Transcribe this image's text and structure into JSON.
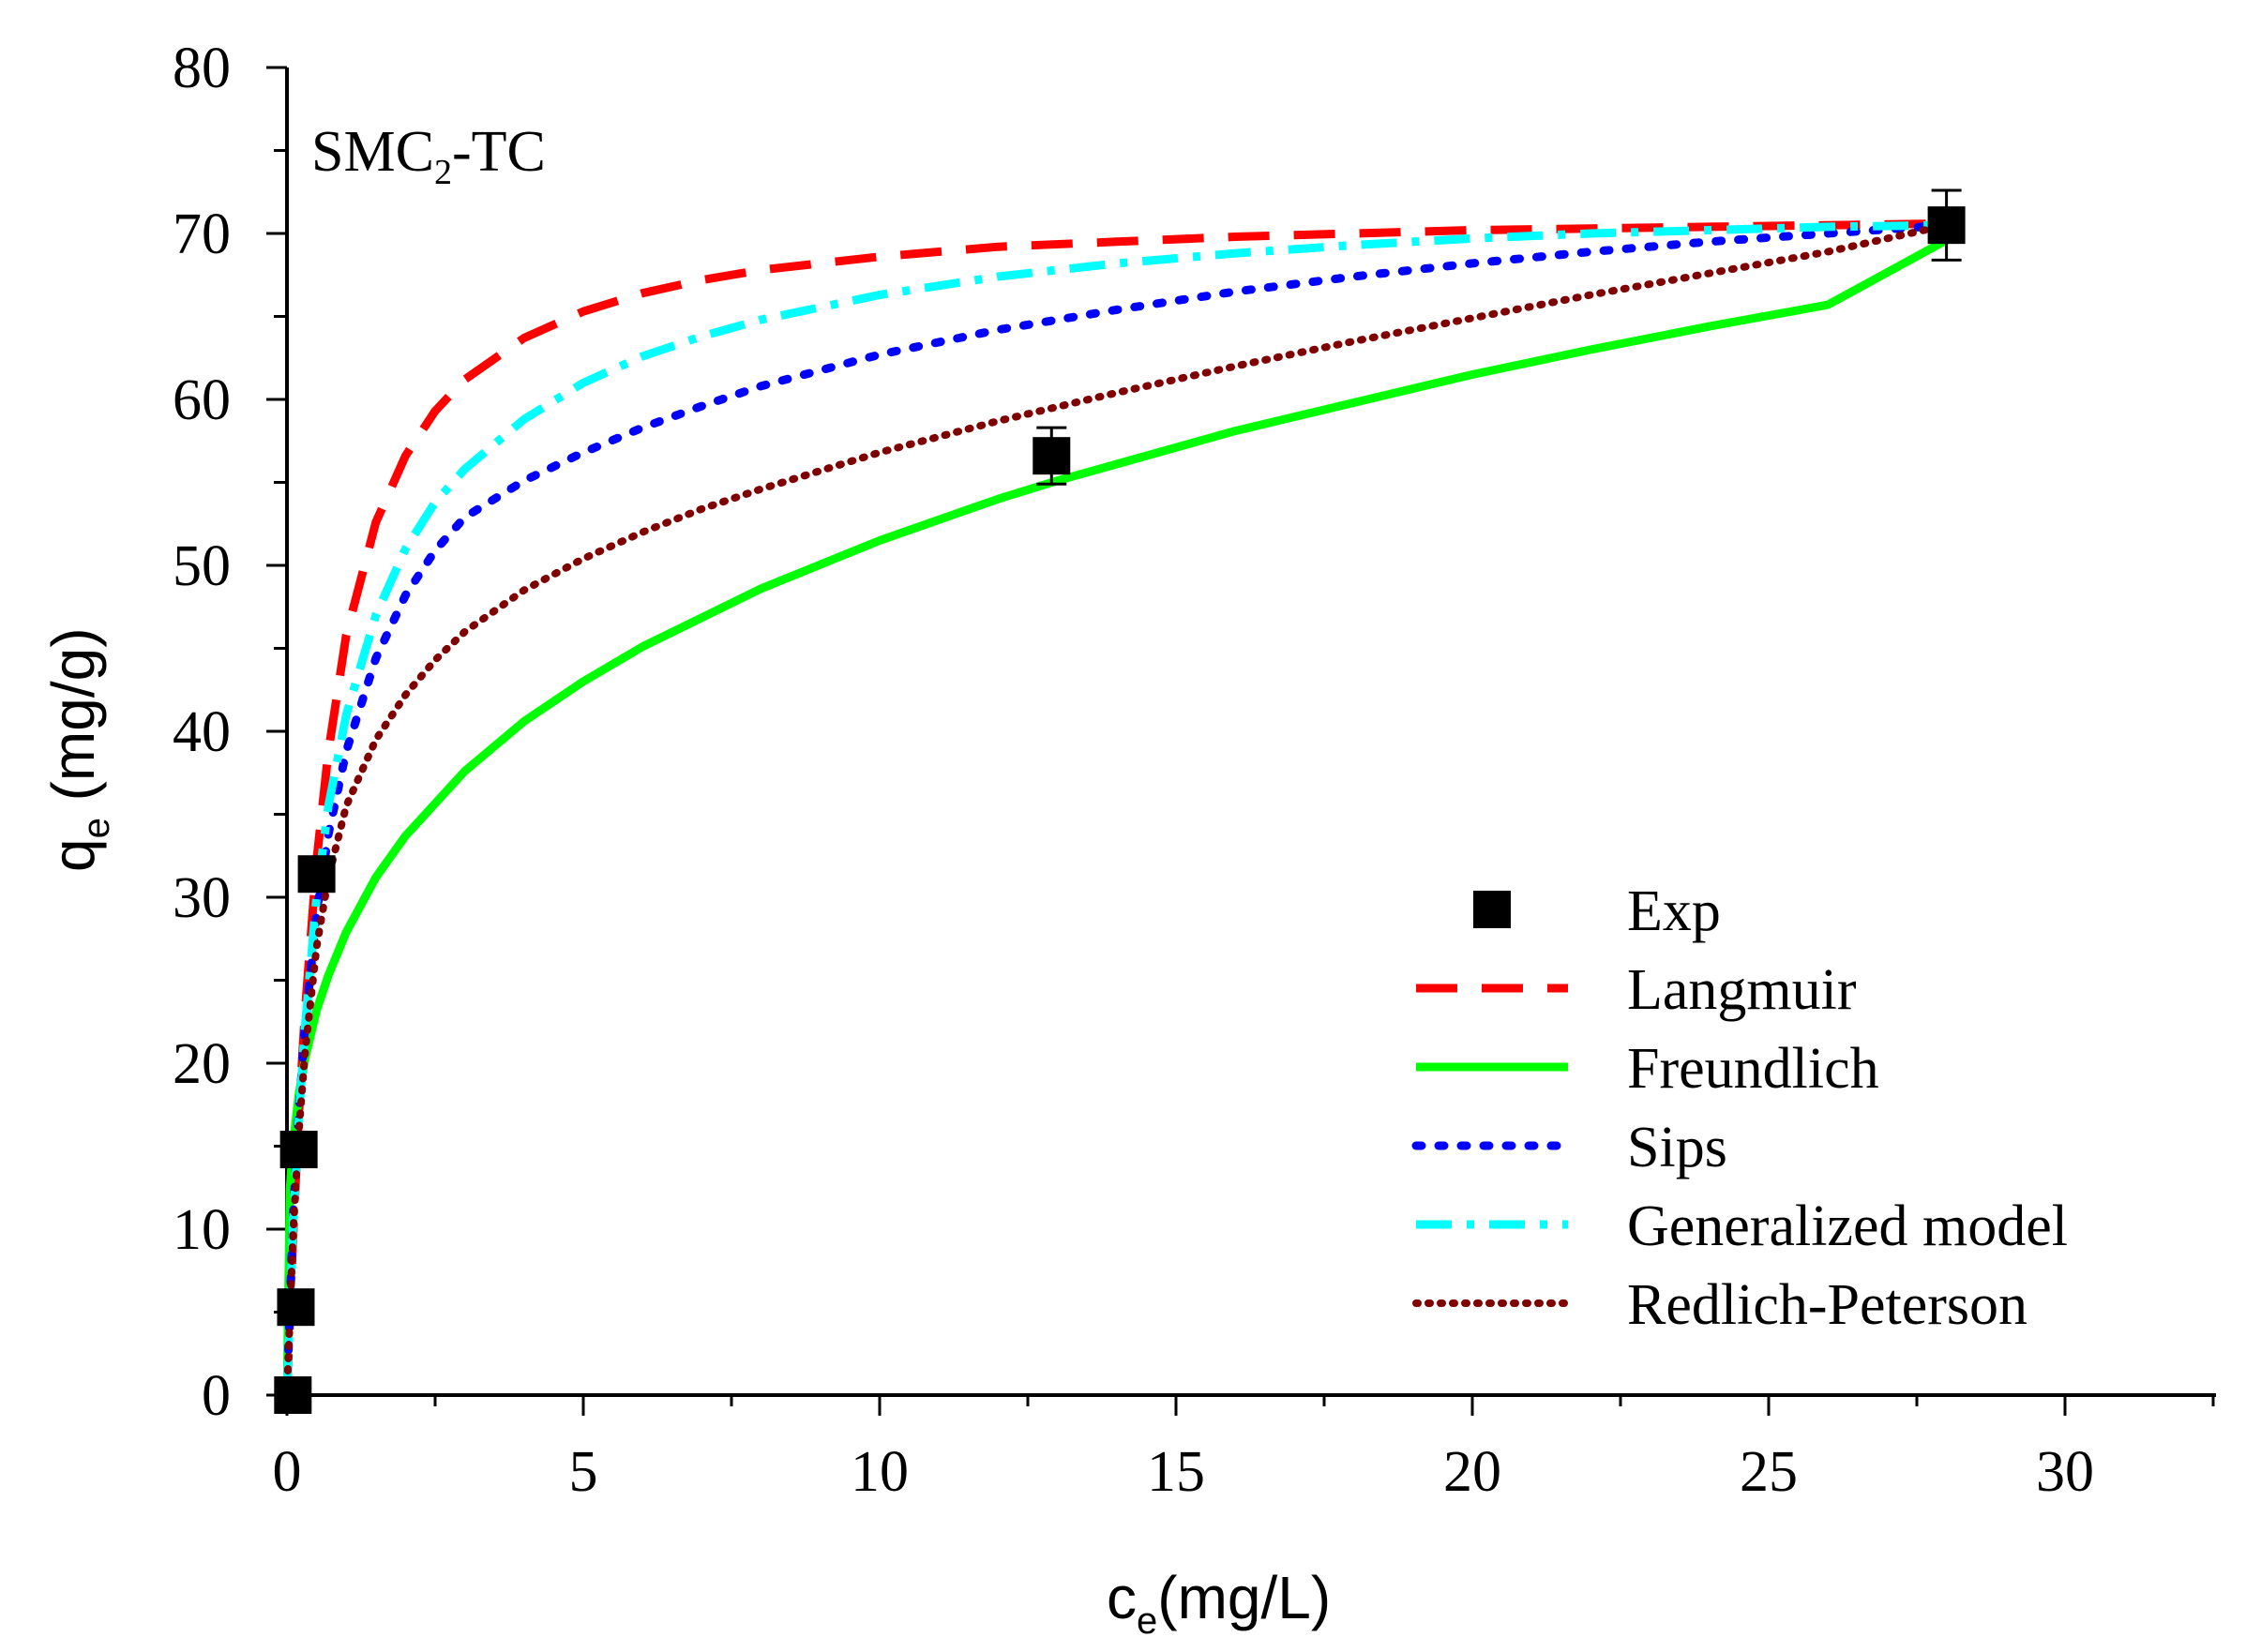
{
  "chart_data": {
    "type": "line",
    "panel_label": {
      "main": "SMC",
      "sub": "2",
      "tail": "-TC"
    },
    "xlabel": {
      "main": "c",
      "sub": "e",
      "unit": "(mg/L)"
    },
    "ylabel": {
      "main": "q",
      "sub": "e",
      "unit": " (mg/g)"
    },
    "xlim": [
      0,
      32.5
    ],
    "ylim": [
      0,
      80
    ],
    "xticks": [
      0,
      5,
      10,
      15,
      20,
      25,
      30
    ],
    "yticks": [
      0,
      10,
      20,
      30,
      40,
      50,
      60,
      70,
      80
    ],
    "legend_position": "bottom-right",
    "experimental": {
      "name": "Exp",
      "color": "#000000",
      "points": [
        {
          "x": 0.1,
          "y": 0.0,
          "err": 0
        },
        {
          "x": 0.15,
          "y": 5.3,
          "err": 0
        },
        {
          "x": 0.2,
          "y": 14.8,
          "err": 0
        },
        {
          "x": 0.5,
          "y": 31.4,
          "err": 0
        },
        {
          "x": 12.9,
          "y": 56.6,
          "err": 1.7
        },
        {
          "x": 28.0,
          "y": 70.5,
          "err": 2.1
        }
      ]
    },
    "series": [
      {
        "name": "Langmuir",
        "color": "#ff0000",
        "dash": "dashed",
        "x": [
          0,
          0.1,
          0.2,
          0.3,
          0.5,
          0.7,
          1.0,
          1.5,
          2.0,
          2.5,
          3.0,
          4.0,
          5.0,
          6.0,
          7.0,
          8.0,
          10.0,
          12.0,
          14.0,
          16.0,
          18.0,
          20.0,
          22.0,
          24.0,
          26.0,
          28.0
        ],
        "values": [
          0,
          9.3,
          16.8,
          22.9,
          32.2,
          38.8,
          45.8,
          52.6,
          56.6,
          59.3,
          61.2,
          63.7,
          65.3,
          66.4,
          67.2,
          67.8,
          68.6,
          69.2,
          69.5,
          69.8,
          70.0,
          70.2,
          70.3,
          70.4,
          70.5,
          70.6
        ]
      },
      {
        "name": "Freundlich",
        "color": "#00ff00",
        "dash": "solid",
        "x": [
          0,
          0.05,
          0.1,
          0.2,
          0.3,
          0.5,
          0.7,
          1.0,
          1.5,
          2.0,
          3.0,
          4.0,
          5.0,
          6.0,
          8.0,
          10.0,
          12.0,
          13.0,
          14.0,
          16.0,
          18.0,
          20.0,
          22.0,
          24.0,
          26.0,
          28.0
        ],
        "values": [
          0,
          12.4,
          15.0,
          18.1,
          20.2,
          23.2,
          25.3,
          27.9,
          31.2,
          33.7,
          37.6,
          40.6,
          43.0,
          45.1,
          48.6,
          51.5,
          54.0,
          55.1,
          56.1,
          58.1,
          59.8,
          61.5,
          63.0,
          64.4,
          65.7,
          69.6
        ]
      },
      {
        "name": "Sips",
        "color": "#0000ff",
        "dash": "dotted",
        "x": [
          0,
          0.1,
          0.2,
          0.3,
          0.5,
          0.7,
          1.0,
          1.5,
          2.0,
          2.5,
          3.0,
          4.0,
          5.0,
          6.0,
          7.0,
          8.0,
          10.0,
          12.0,
          14.0,
          16.0,
          18.0,
          20.0,
          22.0,
          24.0,
          26.0,
          28.0
        ],
        "values": [
          0,
          10.5,
          17.0,
          22.0,
          29.0,
          33.8,
          38.8,
          44.4,
          48.2,
          50.9,
          52.9,
          55.1,
          56.8,
          58.3,
          59.6,
          60.8,
          62.7,
          64.2,
          65.4,
          66.5,
          67.4,
          68.2,
          68.9,
          69.5,
          70.0,
          70.5
        ]
      },
      {
        "name": "Generalized model",
        "color": "#00ffff",
        "dash": "dashdot",
        "x": [
          0,
          0.1,
          0.2,
          0.3,
          0.5,
          0.7,
          1.0,
          1.5,
          2.0,
          2.5,
          3.0,
          4.0,
          5.0,
          6.0,
          7.0,
          8.0,
          10.0,
          12.0,
          14.0,
          16.0,
          18.0,
          20.0,
          22.0,
          24.0,
          26.0,
          28.0
        ],
        "values": [
          0,
          10.0,
          16.5,
          22.0,
          30.0,
          35.5,
          41.0,
          47.0,
          51.0,
          53.8,
          55.8,
          58.8,
          61.0,
          62.6,
          63.8,
          64.8,
          66.3,
          67.4,
          68.2,
          68.8,
          69.3,
          69.7,
          70.0,
          70.2,
          70.4,
          70.5
        ]
      },
      {
        "name": "Redlich-Peterson",
        "color": "#800000",
        "dash": "densedot",
        "x": [
          0,
          0.1,
          0.2,
          0.3,
          0.5,
          0.7,
          1.0,
          1.5,
          2.0,
          2.5,
          3.0,
          4.0,
          5.0,
          6.0,
          7.0,
          8.0,
          10.0,
          12.0,
          14.0,
          16.0,
          18.0,
          20.0,
          22.0,
          24.0,
          26.0,
          28.0
        ],
        "values": [
          0,
          9.5,
          15.8,
          20.5,
          27.0,
          31.2,
          35.5,
          39.5,
          42.2,
          44.3,
          46.0,
          48.5,
          50.4,
          52.0,
          53.4,
          54.6,
          56.8,
          58.7,
          60.4,
          62.0,
          63.5,
          64.9,
          66.3,
          67.6,
          68.9,
          70.5
        ]
      }
    ]
  }
}
